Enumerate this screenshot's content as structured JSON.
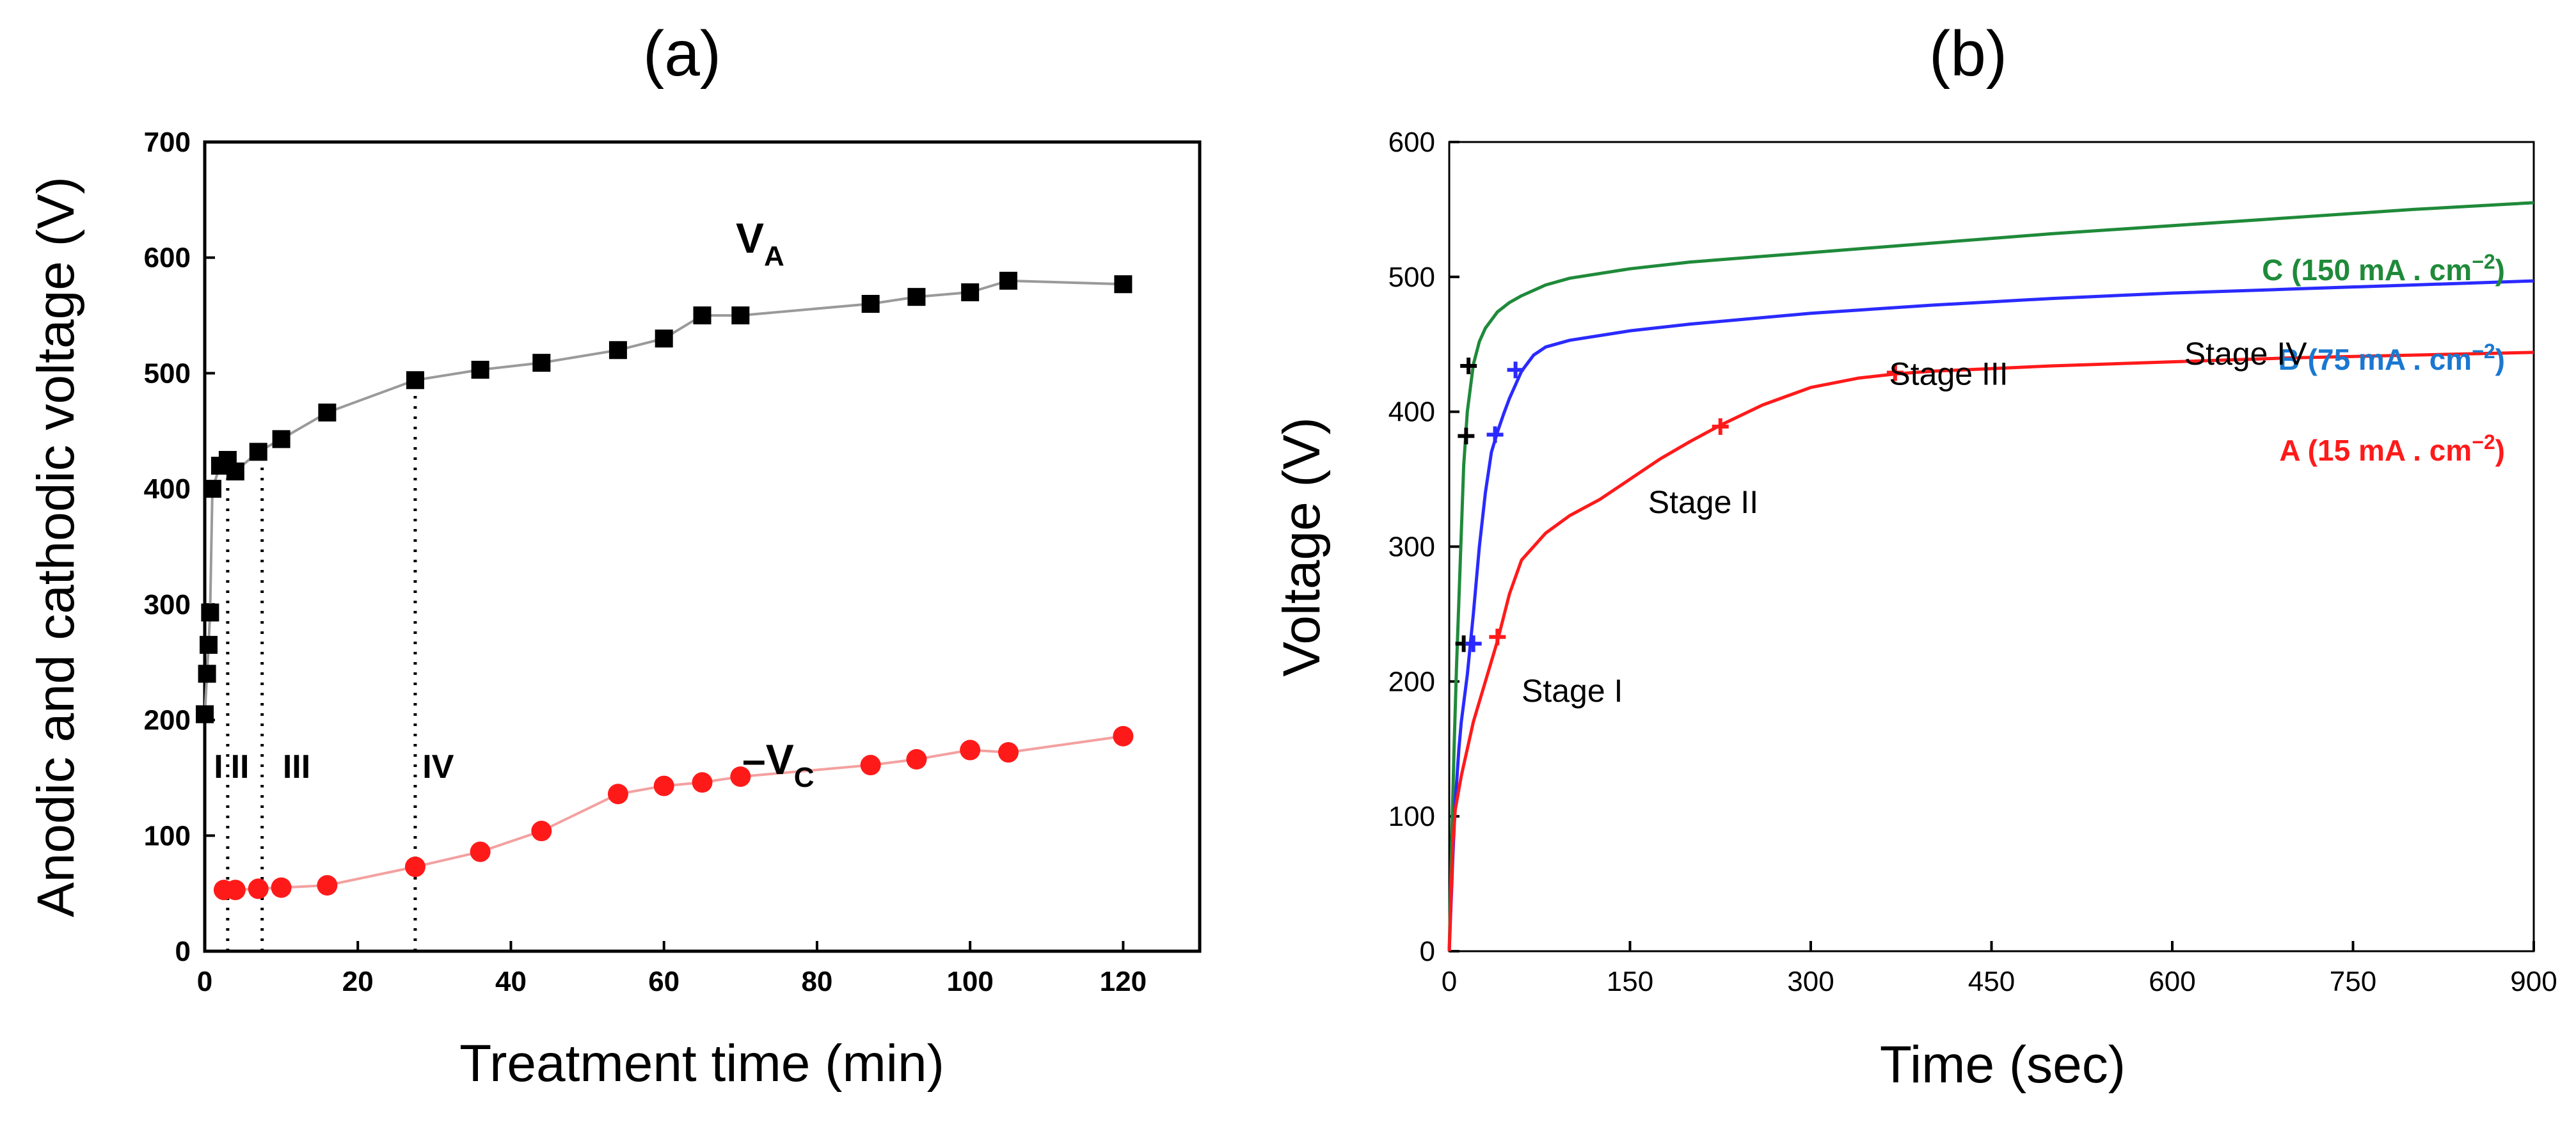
{
  "chart_data": [
    {
      "panel_label": "(a)",
      "type": "line",
      "xlabel": "Treatment time (min)",
      "ylabel": "Anodic and cathodic voltage (V)",
      "xlim": [
        0,
        130
      ],
      "ylim": [
        0,
        700
      ],
      "x_ticks": [
        "0",
        "20",
        "40",
        "60",
        "80",
        "100",
        "120"
      ],
      "y_ticks": [
        "0",
        "100",
        "200",
        "300",
        "400",
        "500",
        "600",
        "700"
      ],
      "grid": false,
      "series": [
        {
          "name": "VA",
          "label_main": "V",
          "label_sub": "A",
          "color": "#000000",
          "line_color": "#9a9a9a",
          "marker": "square",
          "x": [
            0,
            0.3,
            0.5,
            0.7,
            1,
            2,
            3,
            4,
            7,
            10,
            16,
            27.5,
            36,
            44,
            54,
            60,
            65,
            70,
            87,
            93,
            100,
            105,
            120
          ],
          "y": [
            205,
            240,
            265,
            293,
            400,
            420,
            425,
            415,
            432,
            443,
            466,
            494,
            503,
            509,
            520,
            530,
            550,
            550,
            560,
            566,
            570,
            580,
            577
          ]
        },
        {
          "name": "-VC",
          "label_main": "–V",
          "label_sub": "C",
          "color": "#ff1a1a",
          "line_color": "#f4a0a0",
          "marker": "circle",
          "x": [
            2.5,
            4,
            7,
            10,
            16,
            27.5,
            36,
            44,
            54,
            60,
            65,
            70,
            87,
            93,
            100,
            105,
            120
          ],
          "y": [
            53,
            53,
            54,
            55,
            57,
            73,
            86,
            104,
            136,
            143,
            146,
            151,
            161,
            166,
            174,
            172,
            186
          ]
        }
      ],
      "stage_boundaries_x": [
        3,
        7.5,
        27.5
      ],
      "stage_labels": [
        {
          "text": "I",
          "x": 1.8,
          "y": 160
        },
        {
          "text": "II",
          "x": 4.6,
          "y": 160
        },
        {
          "text": "III",
          "x": 12,
          "y": 160
        },
        {
          "text": "IV",
          "x": 30.5,
          "y": 160
        }
      ]
    },
    {
      "panel_label": "(b)",
      "type": "line",
      "xlabel": "Time (sec)",
      "ylabel": "Voltage (V)",
      "xlim": [
        0,
        900
      ],
      "ylim": [
        0,
        600
      ],
      "x_ticks": [
        "0",
        "150",
        "300",
        "450",
        "600",
        "750",
        "900"
      ],
      "y_ticks": [
        "0",
        "100",
        "200",
        "300",
        "400",
        "500",
        "600"
      ],
      "grid": false,
      "series": [
        {
          "name": "C (150 mA . cm⁻²)",
          "color": "#1f8a3a",
          "x": [
            0,
            2,
            4,
            6,
            8,
            10,
            12,
            15,
            20,
            25,
            30,
            40,
            50,
            60,
            80,
            100,
            150,
            200,
            300,
            400,
            500,
            600,
            700,
            800,
            900
          ],
          "y": [
            0,
            80,
            150,
            210,
            260,
            310,
            360,
            400,
            435,
            452,
            462,
            474,
            481,
            486,
            494,
            499,
            506,
            511,
            518,
            525,
            532,
            538,
            544,
            550,
            555
          ]
        },
        {
          "name": "B (75 mA . cm⁻²)",
          "color": "#2a2aff",
          "x": [
            0,
            3,
            5,
            8,
            10,
            15,
            20,
            25,
            30,
            35,
            40,
            45,
            50,
            55,
            60,
            70,
            80,
            100,
            150,
            200,
            300,
            400,
            500,
            600,
            700,
            800,
            900
          ],
          "y": [
            0,
            70,
            110,
            150,
            170,
            205,
            250,
            300,
            340,
            370,
            385,
            398,
            410,
            420,
            430,
            442,
            448,
            453,
            460,
            465,
            473,
            479,
            484,
            488,
            491,
            494,
            497
          ]
        },
        {
          "name": "A (15 mA . cm⁻²)",
          "color": "#ff1a1a",
          "x": [
            0,
            3,
            5,
            10,
            15,
            20,
            30,
            40,
            50,
            60,
            80,
            100,
            125,
            150,
            175,
            200,
            225,
            260,
            300,
            340,
            370,
            400,
            450,
            500,
            600,
            700,
            800,
            900
          ],
          "y": [
            0,
            80,
            105,
            130,
            150,
            170,
            200,
            230,
            265,
            290,
            310,
            323,
            335,
            350,
            365,
            378,
            390,
            405,
            418,
            425,
            428,
            430,
            432,
            434,
            437,
            440,
            442,
            444
          ]
        }
      ],
      "legend_labels": [
        {
          "prefix": "C (150 mA . cm",
          "exp": "−2",
          "suffix": ")",
          "color": "#1f8a3a"
        },
        {
          "prefix": "B (75 mA . cm",
          "exp": "−2",
          "suffix": ")",
          "color": "#1a78d0"
        },
        {
          "prefix": "A (15 mA . cm",
          "exp": "−2",
          "suffix": ")",
          "color": "#ff1a1a"
        }
      ],
      "stage_markers": [
        {
          "series": "C",
          "color": "#000000",
          "x": [
            12,
            14,
            16
          ],
          "y": [
            228,
            382,
            434
          ]
        },
        {
          "series": "B",
          "color": "#2a2aff",
          "x": [
            20,
            38,
            55
          ],
          "y": [
            228,
            383,
            431
          ]
        },
        {
          "series": "A",
          "color": "#ff1a1a",
          "x": [
            40,
            225,
            370
          ],
          "y": [
            233,
            389,
            429
          ]
        }
      ],
      "stage_labels": [
        {
          "text": "Stage I",
          "x": 60,
          "y": 185
        },
        {
          "text": "Stage II",
          "x": 165,
          "y": 325
        },
        {
          "text": "Stage III",
          "x": 365,
          "y": 420
        },
        {
          "text": "Stage IV",
          "x": 610,
          "y": 435
        }
      ]
    }
  ]
}
